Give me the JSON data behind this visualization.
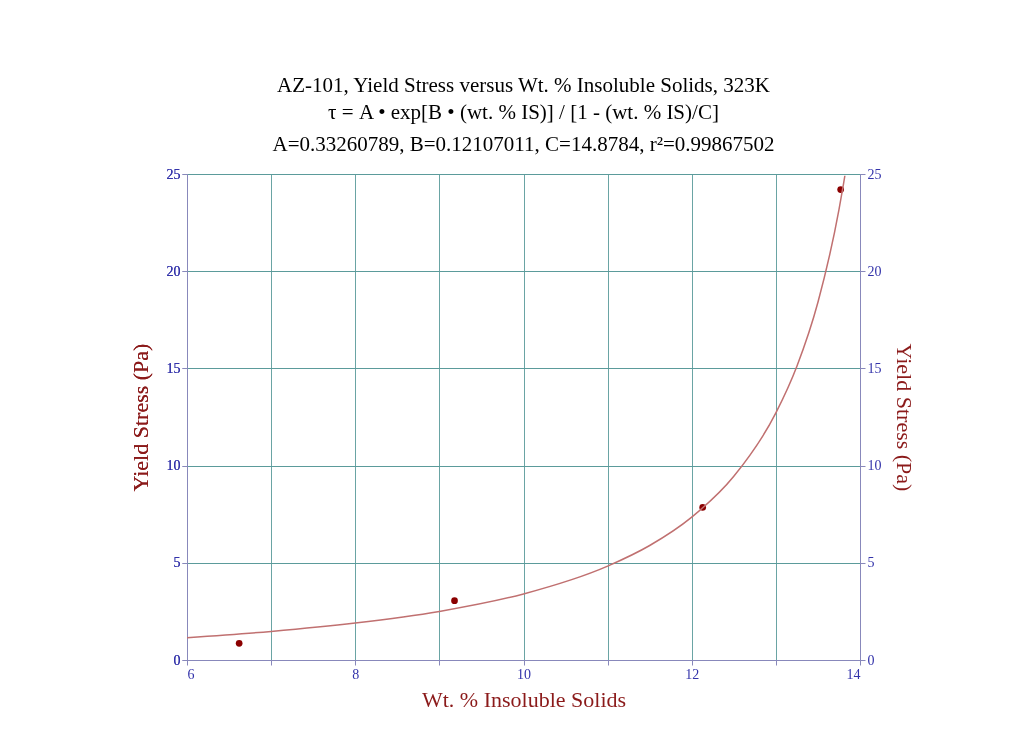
{
  "chart_data": {
    "type": "scatter",
    "title": "AZ-101, Yield Stress versus Wt. % Insoluble Solids, 323K",
    "subtitle": "τ = A • exp[B • (wt. % IS)] / [1 - (wt. % IS)/C]\nA=0.33260789, B=0.12107011, C=14.8784, r²=0.99867502",
    "xlabel": "Wt. % Insoluble Solids",
    "ylabel": "Yield Stress (Pa)",
    "y2label": "Yield Stress (Pa)",
    "series": [
      {
        "color": "#8b0000",
        "marker": "circle",
        "x": [
          6.62,
          9.18,
          12.13,
          13.77
        ],
        "values": [
          0.86,
          3.05,
          7.85,
          24.2
        ]
      },
      {
        "type": "line",
        "color": "#c07070",
        "line_style": "solid",
        "x": [
          6,
          7,
          8,
          9,
          10,
          11,
          11.5,
          12,
          12.5,
          13,
          13.25,
          13.5,
          13.75,
          13.8,
          13.82
        ],
        "values": [
          1.15,
          1.47,
          1.9,
          2.5,
          3.4,
          4.83,
          5.89,
          7.35,
          9.45,
          12.71,
          15.11,
          18.4,
          23.17,
          24.39,
          24.91
        ]
      }
    ],
    "xlim": [
      6,
      14
    ],
    "xticks": [
      6,
      {
        "value": 7,
        "label": null
      },
      8,
      {
        "value": 9,
        "label": null
      },
      10,
      {
        "value": 11,
        "label": null
      },
      12,
      {
        "value": 13,
        "label": null
      },
      14
    ],
    "ylim": [
      0,
      25
    ],
    "yticks": [
      0,
      5,
      10,
      15,
      20,
      25
    ],
    "y2lim": [
      0,
      25
    ],
    "y2ticks": [
      0,
      5,
      10,
      15,
      20,
      25
    ],
    "grid": true
  }
}
